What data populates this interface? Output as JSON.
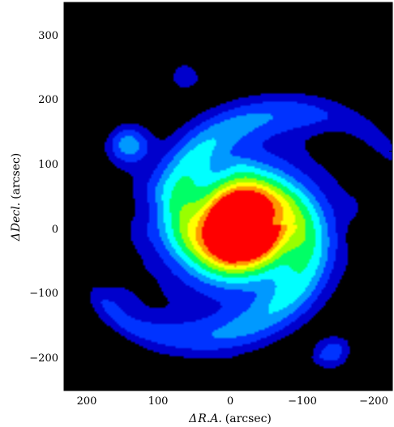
{
  "chart_data": {
    "type": "heatmap",
    "title": "",
    "xlabel_symbol": "Δ",
    "xlabel_name": "R.A.",
    "xlabel_unit": "(arcsec)",
    "ylabel_symbol": "Δ",
    "ylabel_name": "Decl.",
    "ylabel_unit": "(arcsec)",
    "xlim": [
      230,
      -230
    ],
    "ylim": [
      -250,
      350
    ],
    "x_reversed": true,
    "xticks": [
      200,
      100,
      0,
      -100,
      -200
    ],
    "xtick_labels": [
      "200",
      "100",
      "0",
      "−100",
      "−200"
    ],
    "yticks": [
      -200,
      -100,
      0,
      100,
      200,
      300
    ],
    "ytick_labels": [
      "−200",
      "−100",
      "0",
      "100",
      "200",
      "300"
    ],
    "grid": false,
    "background_color": "#000000",
    "colormap": [
      "#0000cc",
      "#0033ff",
      "#0099ff",
      "#00ffff",
      "#00ff66",
      "#99ff00",
      "#ffff00",
      "#ff9900",
      "#ff0000"
    ],
    "contour_line_color": "#9a9a9a",
    "peak": {
      "x": -20,
      "y": 5
    },
    "features": [
      {
        "name": "north arm tip",
        "x": 65,
        "y": 250
      },
      {
        "name": "east clump",
        "x": 140,
        "y": 130
      },
      {
        "name": "southwest clump",
        "x": -150,
        "y": -200
      }
    ]
  }
}
